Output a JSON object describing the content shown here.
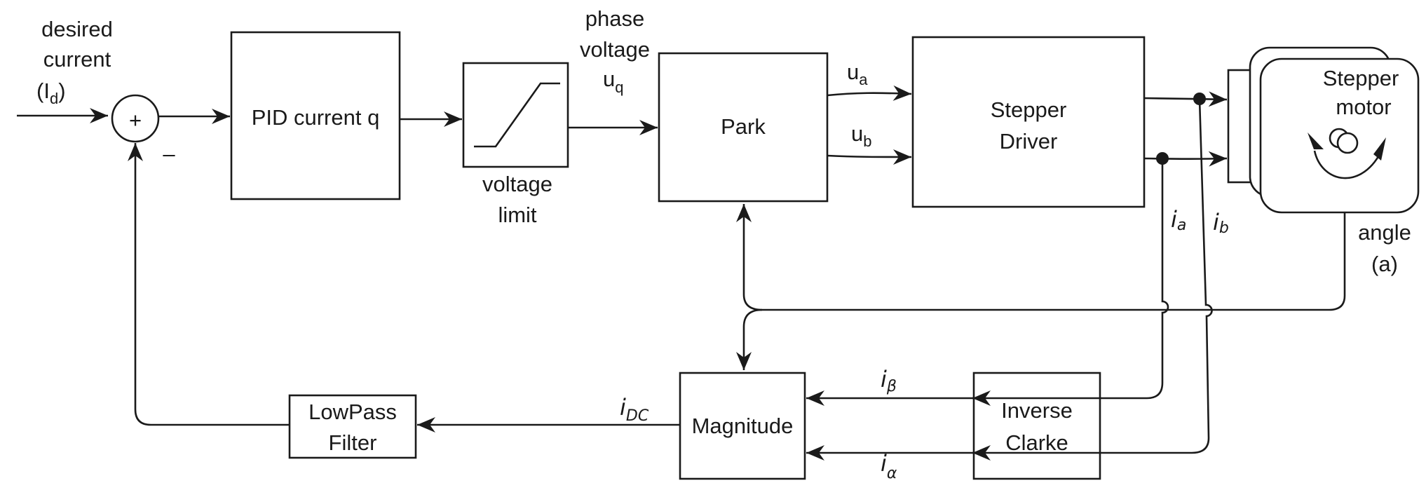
{
  "blocks": {
    "pid": "PID current q",
    "voltage_limit": [
      "voltage",
      "limit"
    ],
    "park": "Park",
    "driver": [
      "Stepper",
      "Driver"
    ],
    "motor": [
      "Stepper",
      "motor"
    ],
    "magnitude": "Magnitude",
    "inverse_clarke": [
      "Inverse",
      "Clarke"
    ],
    "lowpass": [
      "LowPass",
      "Filter"
    ]
  },
  "labels": {
    "desired_current": [
      "desired",
      "current"
    ],
    "desired_symbol": "I",
    "desired_symbol_sub": "d",
    "sum_plus": "+",
    "sum_minus": "–",
    "phase_voltage": [
      "phase",
      "voltage"
    ],
    "uq": "u",
    "uq_sub": "q",
    "ua": "u",
    "ua_sub": "a",
    "ub": "u",
    "ub_sub": "b",
    "ia": "i",
    "ia_sub": "a",
    "ib": "i",
    "ib_sub": "b",
    "angle": [
      "angle",
      "(a)"
    ],
    "ibeta": "i",
    "ibeta_sub": "β",
    "ialpha": "i",
    "ialpha_sub": "α",
    "idc": "i",
    "idc_sub": "DC"
  }
}
